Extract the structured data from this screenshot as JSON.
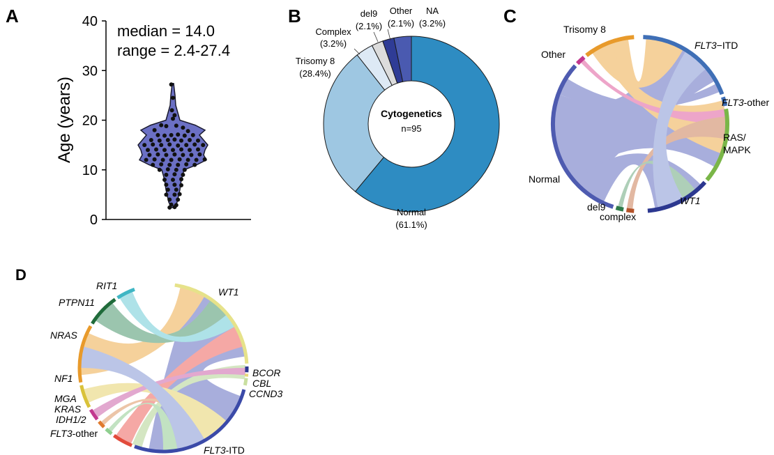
{
  "panels": {
    "A": "A",
    "B": "B",
    "C": "C",
    "D": "D"
  },
  "chart_data": [
    {
      "id": "A",
      "type": "violin",
      "ylabel": "Age (years)",
      "ylim": [
        0,
        40
      ],
      "yticks": [
        0,
        10,
        20,
        30,
        40
      ],
      "annotations": [
        "median = 14.0",
        "range = 2.4-27.4"
      ],
      "median": 14.0,
      "range": [
        2.4,
        27.4
      ],
      "fill": "#6b70c4",
      "points": [
        [
          -0.05,
          27.2
        ],
        [
          0.0,
          24.5
        ],
        [
          -0.03,
          22.0
        ],
        [
          0.05,
          21.0
        ],
        [
          0.0,
          20.3
        ],
        [
          -0.35,
          19.0
        ],
        [
          -0.2,
          18.8
        ],
        [
          0.1,
          18.9
        ],
        [
          0.3,
          18.5
        ],
        [
          0.45,
          17.8
        ],
        [
          -0.55,
          18.0
        ],
        [
          -0.45,
          17.0
        ],
        [
          -0.25,
          16.9
        ],
        [
          -0.05,
          17.0
        ],
        [
          0.15,
          17.1
        ],
        [
          0.35,
          16.9
        ],
        [
          0.6,
          17.0
        ],
        [
          -0.65,
          16.0
        ],
        [
          -0.4,
          15.9
        ],
        [
          -0.15,
          16.0
        ],
        [
          0.05,
          16.1
        ],
        [
          0.25,
          15.9
        ],
        [
          0.5,
          16.0
        ],
        [
          0.75,
          15.9
        ],
        [
          -0.85,
          15.0
        ],
        [
          -0.6,
          15.1
        ],
        [
          -0.35,
          15.0
        ],
        [
          -0.1,
          15.1
        ],
        [
          0.15,
          14.9
        ],
        [
          0.4,
          15.0
        ],
        [
          0.65,
          15.1
        ],
        [
          0.9,
          15.0
        ],
        [
          -0.75,
          14.0
        ],
        [
          -0.5,
          14.1
        ],
        [
          -0.25,
          14.0
        ],
        [
          0.0,
          14.0
        ],
        [
          0.25,
          14.1
        ],
        [
          0.5,
          14.0
        ],
        [
          0.75,
          14.1
        ],
        [
          -0.7,
          13.0
        ],
        [
          -0.45,
          13.1
        ],
        [
          -0.2,
          13.0
        ],
        [
          0.05,
          13.1
        ],
        [
          0.3,
          13.0
        ],
        [
          0.55,
          13.0
        ],
        [
          0.8,
          13.1
        ],
        [
          -0.8,
          12.0
        ],
        [
          -0.55,
          12.1
        ],
        [
          -0.3,
          12.0
        ],
        [
          -0.05,
          12.0
        ],
        [
          0.2,
          12.1
        ],
        [
          0.45,
          12.0
        ],
        [
          0.7,
          12.0
        ],
        [
          0.95,
          12.1
        ],
        [
          -0.6,
          11.0
        ],
        [
          -0.35,
          11.1
        ],
        [
          -0.1,
          11.0
        ],
        [
          0.15,
          11.0
        ],
        [
          0.4,
          11.1
        ],
        [
          0.65,
          11.0
        ],
        [
          -0.4,
          10.0
        ],
        [
          -0.15,
          10.1
        ],
        [
          0.1,
          10.0
        ],
        [
          0.35,
          10.0
        ],
        [
          -0.2,
          9.0
        ],
        [
          0.05,
          9.1
        ],
        [
          0.3,
          9.0
        ],
        [
          -0.25,
          8.0
        ],
        [
          0.0,
          8.0
        ],
        [
          0.25,
          8.1
        ],
        [
          -0.2,
          7.0
        ],
        [
          0.05,
          7.0
        ],
        [
          0.25,
          6.9
        ],
        [
          -0.15,
          6.0
        ],
        [
          0.1,
          6.0
        ],
        [
          -0.2,
          5.0
        ],
        [
          0.05,
          5.0
        ],
        [
          0.2,
          5.1
        ],
        [
          -0.1,
          4.0
        ],
        [
          0.15,
          4.0
        ],
        [
          -0.05,
          3.0
        ],
        [
          0.1,
          2.9
        ],
        [
          -0.1,
          2.4
        ],
        [
          0.05,
          2.5
        ]
      ]
    },
    {
      "id": "B",
      "type": "pie",
      "donut": true,
      "center_title": "Cytogenetics",
      "center_subtitle": "n=95",
      "slices": [
        {
          "name": "Normal",
          "pct_label": "(61.1%)",
          "value": 61.1,
          "color": "#2e8cc2"
        },
        {
          "name": "Trisomy 8",
          "pct_label": "(28.4%)",
          "value": 28.4,
          "color": "#9ec7e2"
        },
        {
          "name": "Complex",
          "pct_label": "(3.2%)",
          "value": 3.2,
          "color": "#dde9f5"
        },
        {
          "name": "del9",
          "pct_label": "(2.1%)",
          "value": 2.1,
          "color": "#dcdcdc"
        },
        {
          "name": "Other",
          "pct_label": "(2.1%)",
          "value": 2.1,
          "color": "#2f3c96"
        },
        {
          "name": "NA",
          "pct_label": "(3.2%)",
          "value": 3.2,
          "color": "#4a5ab0"
        }
      ]
    },
    {
      "id": "C",
      "type": "chord",
      "segments": [
        {
          "label": "FLT3",
          "suffix": "−ITD",
          "italic": true,
          "color": "#3f6fb6"
        },
        {
          "label": "FLT3",
          "suffix": "-other",
          "italic": true,
          "color": "#3f6fb6"
        },
        {
          "label": "RAS/",
          "label2": "MAPK",
          "italic": false,
          "color": "#7ab648"
        },
        {
          "label": "WT1",
          "suffix": "",
          "italic": true,
          "color": "#2c3890"
        },
        {
          "label": "complex",
          "suffix": "",
          "italic": false,
          "color": "#b4532a"
        },
        {
          "label": "del9",
          "suffix": "",
          "italic": false,
          "color": "#2f7a4a"
        },
        {
          "label": "Normal",
          "suffix": "",
          "italic": false,
          "color": "#4e5bb0"
        },
        {
          "label": "Other",
          "suffix": "",
          "italic": false,
          "color": "#c2388f"
        },
        {
          "label": "Trisomy 8",
          "suffix": "",
          "italic": false,
          "color": "#e89a2b"
        }
      ]
    },
    {
      "id": "D",
      "type": "chord",
      "segments": [
        {
          "label": "WT1",
          "suffix": "",
          "italic": true,
          "color": "#e6e28a"
        },
        {
          "label": "BCOR",
          "suffix": "",
          "italic": true,
          "color": "#2c3890"
        },
        {
          "label": "CBL",
          "suffix": "",
          "italic": true,
          "color": "#e8d67a"
        },
        {
          "label": "CCND3",
          "suffix": "",
          "italic": true,
          "color": "#c9dfa0"
        },
        {
          "label": "FLT3",
          "suffix": "-ITD",
          "italic": true,
          "color": "#3b4aa8"
        },
        {
          "label": "FLT3",
          "suffix": "-other",
          "italic": true,
          "color": "#e24b3b"
        },
        {
          "label": "IDH1/2",
          "suffix": "",
          "italic": true,
          "color": "#8fcf8f"
        },
        {
          "label": "KRAS",
          "suffix": "",
          "italic": true,
          "color": "#e07a2e"
        },
        {
          "label": "MGA",
          "suffix": "",
          "italic": true,
          "color": "#c2388f"
        },
        {
          "label": "NF1",
          "suffix": "",
          "italic": true,
          "color": "#d9c23a"
        },
        {
          "label": "NRAS",
          "suffix": "",
          "italic": true,
          "color": "#e89a2b"
        },
        {
          "label": "PTPN11",
          "suffix": "",
          "italic": true,
          "color": "#1f6b3a"
        },
        {
          "label": "RIT1",
          "suffix": "",
          "italic": true,
          "color": "#3fb6c4"
        }
      ]
    }
  ]
}
